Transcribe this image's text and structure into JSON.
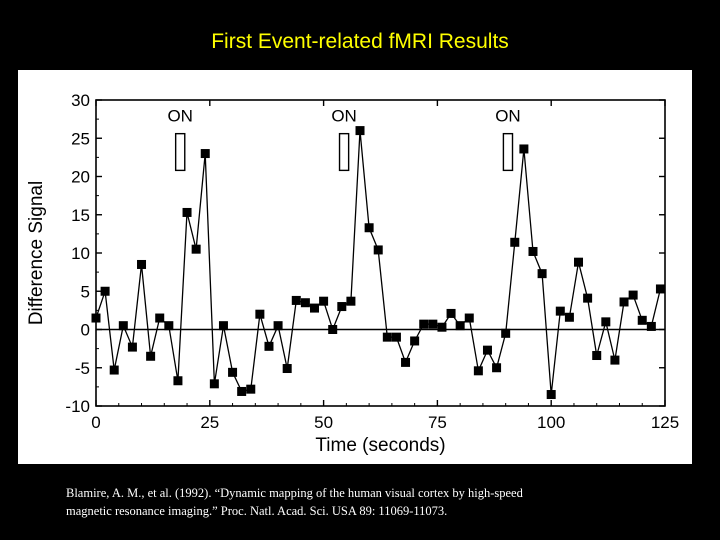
{
  "slide": {
    "title": "First Event-related fMRI Results",
    "citation_line1": "Blamire, A. M., et al. (1992). “Dynamic mapping of the human visual cortex by high-speed",
    "citation_line2": "magnetic resonance imaging.” Proc. Natl. Acad. Sci. USA 89: 11069-11073."
  },
  "colors": {
    "background": "#000000",
    "title": "#ffff00",
    "panel": "#ffffff",
    "ink": "#000000"
  },
  "chart_data": {
    "type": "line",
    "title": "",
    "xlabel": "Time (seconds)",
    "ylabel": "Difference Signal",
    "xlim": [
      0,
      125
    ],
    "ylim": [
      -10,
      30
    ],
    "xticks": [
      0,
      25,
      50,
      75,
      100,
      125
    ],
    "yticks": [
      30,
      25,
      20,
      15,
      10,
      5,
      0,
      -5,
      -10
    ],
    "zero_line": true,
    "markers": "filled-square",
    "grid": false,
    "legend": "none",
    "stimulus_label": "ON",
    "stimulus_events": [
      {
        "label": "ON",
        "start": 17.5,
        "end": 19.5
      },
      {
        "label": "ON",
        "start": 53.5,
        "end": 55.5
      },
      {
        "label": "ON",
        "start": 89.5,
        "end": 91.5
      }
    ],
    "series": [
      {
        "x": [
          0,
          2,
          4,
          6,
          8,
          10,
          12,
          14,
          16,
          18,
          20,
          22,
          24,
          26,
          28,
          30,
          32,
          34,
          36,
          38,
          40,
          42,
          44,
          46,
          48,
          50,
          52,
          54,
          56,
          58,
          60,
          62,
          64,
          66,
          68,
          70,
          72,
          74,
          76,
          78,
          80,
          82,
          84,
          86,
          88,
          90,
          92,
          94,
          96,
          98,
          100,
          102,
          104,
          106,
          108,
          110,
          112,
          114,
          116,
          118,
          120,
          122,
          124
        ],
        "y": [
          1.5,
          5.0,
          -5.3,
          0.5,
          -2.3,
          8.5,
          -3.5,
          1.5,
          0.5,
          -6.7,
          15.3,
          10.5,
          23.0,
          -7.1,
          0.5,
          -5.6,
          -8.1,
          -7.8,
          2.0,
          -2.2,
          0.5,
          -5.1,
          3.8,
          3.5,
          2.8,
          3.7,
          0.0,
          3.0,
          3.7,
          26.0,
          13.3,
          10.4,
          -1.0,
          -1.0,
          -4.3,
          -1.5,
          0.7,
          0.7,
          0.3,
          2.1,
          0.5,
          1.5,
          -5.4,
          -2.7,
          -5.0,
          -0.5,
          11.4,
          23.6,
          10.2,
          7.3,
          -8.5,
          2.4,
          1.6,
          8.8,
          4.1,
          -3.4,
          1.0,
          -4.0,
          3.6,
          4.5,
          1.2,
          0.4,
          5.3
        ]
      }
    ]
  }
}
